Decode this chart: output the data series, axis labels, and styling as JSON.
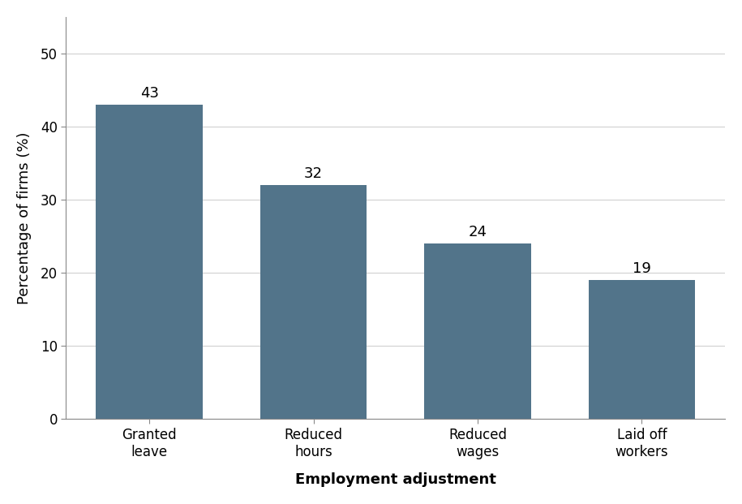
{
  "categories": [
    "Granted\nleave",
    "Reduced\nhours",
    "Reduced\nwages",
    "Laid off\nworkers"
  ],
  "values": [
    43,
    32,
    24,
    19
  ],
  "bar_color": "#52748a",
  "xlabel": "Employment adjustment",
  "ylabel": "Percentage of firms (%)",
  "ylim": [
    0,
    55
  ],
  "yticks": [
    0,
    10,
    20,
    30,
    40,
    50
  ],
  "bar_labels": [
    "43",
    "32",
    "24",
    "19"
  ],
  "label_fontsize": 13,
  "axis_label_fontsize": 13,
  "tick_fontsize": 12,
  "background_color": "#ffffff",
  "grid_color": "#d0d0d0",
  "bar_width": 0.65
}
